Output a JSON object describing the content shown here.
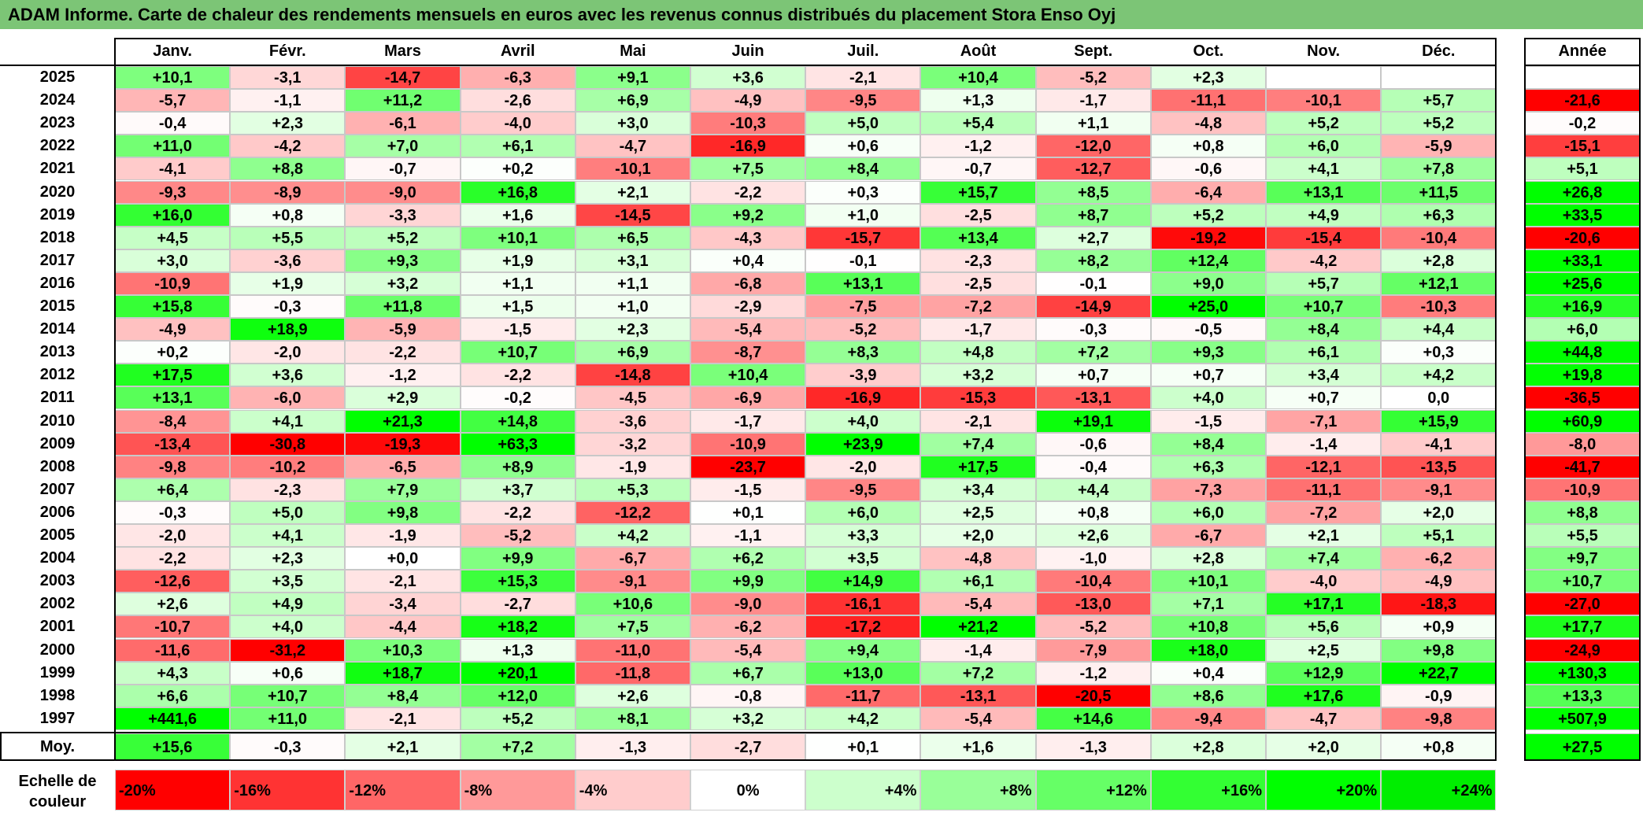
{
  "title": "ADAM Informe. Carte de chaleur des rendements mensuels en euros avec les revenus connus distribués du placement Stora Enso Oyj",
  "chart_data": {
    "type": "heatmap",
    "months": [
      "Janv.",
      "Févr.",
      "Mars",
      "Avril",
      "Mai",
      "Juin",
      "Juil.",
      "Août",
      "Sept.",
      "Oct.",
      "Nov.",
      "Déc."
    ],
    "year_header": "Année",
    "rows": [
      {
        "year": "2025",
        "m": [
          "+10,1",
          "-3,1",
          "-14,7",
          "-6,3",
          "+9,1",
          "+3,6",
          "-2,1",
          "+10,4",
          "-5,2",
          "+2,3",
          "",
          ""
        ],
        "annual": ""
      },
      {
        "year": "2024",
        "m": [
          "-5,7",
          "-1,1",
          "+11,2",
          "-2,6",
          "+6,9",
          "-4,9",
          "-9,5",
          "+1,3",
          "-1,7",
          "-11,1",
          "-10,1",
          "+5,7"
        ],
        "annual": "-21,6"
      },
      {
        "year": "2023",
        "m": [
          "-0,4",
          "+2,3",
          "-6,1",
          "-4,0",
          "+3,0",
          "-10,3",
          "+5,0",
          "+5,4",
          "+1,1",
          "-4,8",
          "+5,2",
          "+5,2"
        ],
        "annual": "-0,2"
      },
      {
        "year": "2022",
        "m": [
          "+11,0",
          "-4,2",
          "+7,0",
          "+6,1",
          "-4,7",
          "-16,9",
          "+0,6",
          "-1,2",
          "-12,0",
          "+0,8",
          "+6,0",
          "-5,9"
        ],
        "annual": "-15,1"
      },
      {
        "year": "2021",
        "m": [
          "-4,1",
          "+8,8",
          "-0,7",
          "+0,2",
          "-10,1",
          "+7,5",
          "+8,4",
          "-0,7",
          "-12,7",
          "-0,6",
          "+4,1",
          "+7,8"
        ],
        "annual": "+5,1"
      },
      {
        "year": "2020",
        "m": [
          "-9,3",
          "-8,9",
          "-9,0",
          "+16,8",
          "+2,1",
          "-2,2",
          "+0,3",
          "+15,7",
          "+8,5",
          "-6,4",
          "+13,1",
          "+11,5"
        ],
        "annual": "+26,8"
      },
      {
        "year": "2019",
        "m": [
          "+16,0",
          "+0,8",
          "-3,3",
          "+1,6",
          "-14,5",
          "+9,2",
          "+1,0",
          "-2,5",
          "+8,7",
          "+5,2",
          "+4,9",
          "+6,3"
        ],
        "annual": "+33,5"
      },
      {
        "year": "2018",
        "m": [
          "+4,5",
          "+5,5",
          "+5,2",
          "+10,1",
          "+6,5",
          "-4,3",
          "-15,7",
          "+13,4",
          "+2,7",
          "-19,2",
          "-15,4",
          "-10,4"
        ],
        "annual": "-20,6"
      },
      {
        "year": "2017",
        "m": [
          "+3,0",
          "-3,6",
          "+9,3",
          "+1,9",
          "+3,1",
          "+0,4",
          "-0,1",
          "-2,3",
          "+8,2",
          "+12,4",
          "-4,2",
          "+2,8"
        ],
        "annual": "+33,1"
      },
      {
        "year": "2016",
        "m": [
          "-10,9",
          "+1,9",
          "+3,2",
          "+1,1",
          "+1,1",
          "-6,8",
          "+13,1",
          "-2,5",
          "-0,1",
          "+9,0",
          "+5,7",
          "+12,1"
        ],
        "annual": "+25,6"
      },
      {
        "year": "2015",
        "m": [
          "+15,8",
          "-0,3",
          "+11,8",
          "+1,5",
          "+1,0",
          "-2,9",
          "-7,5",
          "-7,2",
          "-14,9",
          "+25,0",
          "+10,7",
          "-10,3"
        ],
        "annual": "+16,9"
      },
      {
        "year": "2014",
        "m": [
          "-4,9",
          "+18,9",
          "-5,9",
          "-1,5",
          "+2,3",
          "-5,4",
          "-5,2",
          "-1,7",
          "-0,3",
          "-0,5",
          "+8,4",
          "+4,4"
        ],
        "annual": "+6,0"
      },
      {
        "year": "2013",
        "m": [
          "+0,2",
          "-2,0",
          "-2,2",
          "+10,7",
          "+6,9",
          "-8,7",
          "+8,3",
          "+4,8",
          "+7,2",
          "+9,3",
          "+6,1",
          "+0,3"
        ],
        "annual": "+44,8"
      },
      {
        "year": "2012",
        "m": [
          "+17,5",
          "+3,6",
          "-1,2",
          "-2,2",
          "-14,8",
          "+10,4",
          "-3,9",
          "+3,2",
          "+0,7",
          "+0,7",
          "+3,4",
          "+4,2"
        ],
        "annual": "+19,8"
      },
      {
        "year": "2011",
        "m": [
          "+13,1",
          "-6,0",
          "+2,9",
          "-0,2",
          "-4,5",
          "-6,9",
          "-16,9",
          "-15,3",
          "-13,1",
          "+4,0",
          "+0,7",
          "0,0"
        ],
        "annual": "-36,5"
      },
      {
        "year": "2010",
        "m": [
          "-8,4",
          "+4,1",
          "+21,3",
          "+14,8",
          "-3,6",
          "-1,7",
          "+4,0",
          "-2,1",
          "+19,1",
          "-1,5",
          "-7,1",
          "+15,9"
        ],
        "annual": "+60,9"
      },
      {
        "year": "2009",
        "m": [
          "-13,4",
          "-30,8",
          "-19,3",
          "+63,3",
          "-3,2",
          "-10,9",
          "+23,9",
          "+7,4",
          "-0,6",
          "+8,4",
          "-1,4",
          "-4,1"
        ],
        "annual": "-8,0"
      },
      {
        "year": "2008",
        "m": [
          "-9,8",
          "-10,2",
          "-6,5",
          "+8,9",
          "-1,9",
          "-23,7",
          "-2,0",
          "+17,5",
          "-0,4",
          "+6,3",
          "-12,1",
          "-13,5"
        ],
        "annual": "-41,7"
      },
      {
        "year": "2007",
        "m": [
          "+6,4",
          "-2,3",
          "+7,9",
          "+3,7",
          "+5,3",
          "-1,5",
          "-9,5",
          "+3,4",
          "+4,4",
          "-7,3",
          "-11,1",
          "-9,1"
        ],
        "annual": "-10,9"
      },
      {
        "year": "2006",
        "m": [
          "-0,3",
          "+5,0",
          "+9,8",
          "-2,2",
          "-12,2",
          "+0,1",
          "+6,0",
          "+2,5",
          "+0,8",
          "+6,0",
          "-7,2",
          "+2,0"
        ],
        "annual": "+8,8"
      },
      {
        "year": "2005",
        "m": [
          "-2,0",
          "+4,1",
          "-1,9",
          "-5,2",
          "+4,2",
          "-1,1",
          "+3,3",
          "+2,0",
          "+2,6",
          "-6,7",
          "+2,1",
          "+5,1"
        ],
        "annual": "+5,5"
      },
      {
        "year": "2004",
        "m": [
          "-2,2",
          "+2,3",
          "+0,0",
          "+9,9",
          "-6,7",
          "+6,2",
          "+3,5",
          "-4,8",
          "-1,0",
          "+2,8",
          "+7,4",
          "-6,2"
        ],
        "annual": "+9,7"
      },
      {
        "year": "2003",
        "m": [
          "-12,6",
          "+3,5",
          "-2,1",
          "+15,3",
          "-9,1",
          "+9,9",
          "+14,9",
          "+6,1",
          "-10,4",
          "+10,1",
          "-4,0",
          "-4,9"
        ],
        "annual": "+10,7"
      },
      {
        "year": "2002",
        "m": [
          "+2,6",
          "+4,9",
          "-3,4",
          "-2,7",
          "+10,6",
          "-9,0",
          "-16,1",
          "-5,4",
          "-13,0",
          "+7,1",
          "+17,1",
          "-18,3"
        ],
        "annual": "-27,0"
      },
      {
        "year": "2001",
        "m": [
          "-10,7",
          "+4,0",
          "-4,4",
          "+18,2",
          "+7,5",
          "-6,2",
          "-17,2",
          "+21,2",
          "-5,2",
          "+10,8",
          "+5,6",
          "+0,9"
        ],
        "annual": "+17,7"
      },
      {
        "year": "2000",
        "m": [
          "-11,6",
          "-31,2",
          "+10,3",
          "+1,3",
          "-11,0",
          "-5,4",
          "+9,4",
          "-1,4",
          "-7,9",
          "+18,0",
          "+2,5",
          "+9,8"
        ],
        "annual": "-24,9"
      },
      {
        "year": "1999",
        "m": [
          "+4,3",
          "+0,6",
          "+18,7",
          "+20,1",
          "-11,8",
          "+6,7",
          "+13,0",
          "+7,2",
          "-1,2",
          "+0,4",
          "+12,9",
          "+22,7"
        ],
        "annual": "+130,3"
      },
      {
        "year": "1998",
        "m": [
          "+6,6",
          "+10,7",
          "+8,4",
          "+12,0",
          "+2,6",
          "-0,8",
          "-11,7",
          "-13,1",
          "-20,5",
          "+8,6",
          "+17,6",
          "-0,9"
        ],
        "annual": "+13,3"
      },
      {
        "year": "1997",
        "m": [
          "+441,6",
          "+11,0",
          "-2,1",
          "+5,2",
          "+8,1",
          "+3,2",
          "+4,2",
          "-5,4",
          "+14,6",
          "-9,4",
          "-4,7",
          "-9,8"
        ],
        "annual": "+507,9"
      }
    ],
    "average": {
      "label": "Moy.",
      "m": [
        "+15,6",
        "-0,3",
        "+2,1",
        "+7,2",
        "-1,3",
        "-2,7",
        "+0,1",
        "+1,6",
        "-1,3",
        "+2,8",
        "+2,0",
        "+0,8"
      ],
      "annual": "+27,5"
    },
    "color_scale": {
      "label_line1": "Echelle de",
      "label_line2": "couleur",
      "stops": [
        {
          "label": "-20%",
          "value": -20,
          "color": "#ff0000"
        },
        {
          "label": "-16%",
          "value": -16,
          "color": "#ff3333"
        },
        {
          "label": "-12%",
          "value": -12,
          "color": "#ff6666"
        },
        {
          "label": "-8%",
          "value": -8,
          "color": "#ff9999"
        },
        {
          "label": "-4%",
          "value": -4,
          "color": "#ffcccc"
        },
        {
          "label": "0%",
          "value": 0,
          "color": "#ffffff"
        },
        {
          "label": "+4%",
          "value": 4,
          "color": "#ccffcc"
        },
        {
          "label": "+8%",
          "value": 8,
          "color": "#99ff99"
        },
        {
          "label": "+12%",
          "value": 12,
          "color": "#66ff66"
        },
        {
          "label": "+16%",
          "value": 16,
          "color": "#33ff33"
        },
        {
          "label": "+20%",
          "value": 20,
          "color": "#00ff00"
        },
        {
          "label": "+24%",
          "value": 24,
          "color": "#00ee00"
        }
      ]
    }
  }
}
